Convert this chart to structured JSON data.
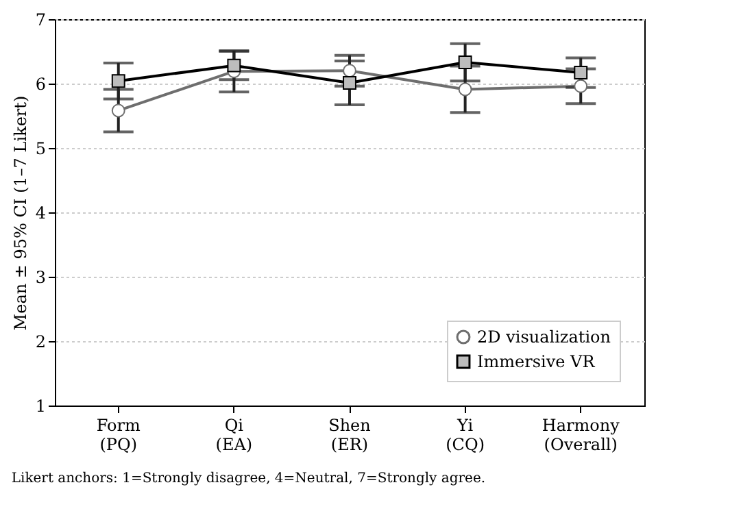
{
  "chart_data": {
    "type": "line",
    "ylabel": "Mean ± 95% CI (1–7 Likert)",
    "categories": [
      "Form\n(PQ)",
      "Qi\n(EA)",
      "Shen\n(ER)",
      "Yi\n(CQ)",
      "Harmony\n(Overall)"
    ],
    "series": [
      {
        "name": "2D visualization",
        "color": "#6e6e6e",
        "marker": "circle",
        "values": [
          5.58,
          6.19,
          6.2,
          5.91,
          5.96
        ],
        "errors": [
          0.33,
          0.32,
          0.24,
          0.36,
          0.27
        ]
      },
      {
        "name": "Immersive VR",
        "color": "#000000",
        "marker": "square",
        "values": [
          6.04,
          6.28,
          6.01,
          6.33,
          6.17
        ],
        "errors": [
          0.28,
          0.22,
          0.34,
          0.29,
          0.23
        ]
      }
    ],
    "ylim": [
      1,
      7
    ],
    "yticks": [
      1,
      2,
      3,
      4,
      5,
      6,
      7
    ],
    "grid": "y",
    "legend": "bottom right",
    "annotations": [
      "Likert anchors: 1=Strongly disagree, 4=Neutral, 7=Strongly agree."
    ]
  }
}
